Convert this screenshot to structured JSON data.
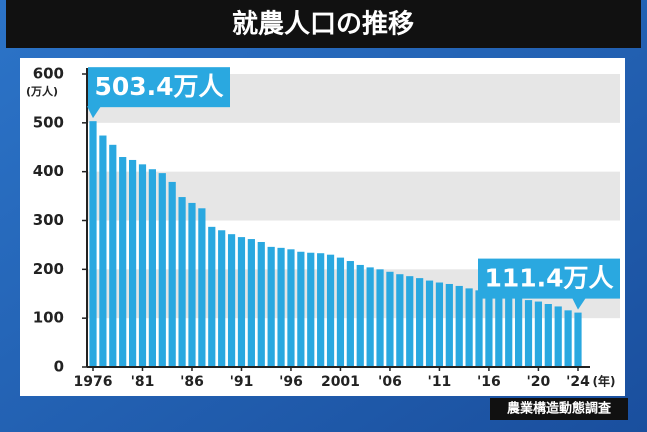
{
  "chart_data": {
    "type": "bar",
    "title": "就農人口の推移",
    "y_unit_label": "(万人)",
    "x_unit_label": "(年)",
    "source": "農業構造動態調査",
    "categories": [
      "1976",
      null,
      null,
      null,
      null,
      "'81",
      null,
      null,
      null,
      null,
      "'86",
      null,
      null,
      null,
      null,
      "'91",
      null,
      null,
      null,
      null,
      "'96",
      null,
      null,
      null,
      null,
      "2001",
      null,
      null,
      null,
      null,
      "'06",
      null,
      null,
      null,
      null,
      "'11",
      null,
      null,
      null,
      null,
      "'16",
      null,
      null,
      null,
      null,
      "'20",
      null,
      null,
      null,
      "'24"
    ],
    "values": [
      503.4,
      474,
      455,
      430,
      424,
      415,
      405,
      397,
      379,
      348,
      336,
      325,
      287,
      280,
      272,
      266,
      262,
      256,
      246,
      244,
      241,
      236,
      234,
      233,
      230,
      224,
      217,
      209,
      204,
      200,
      195,
      190,
      186,
      182,
      177,
      173,
      170,
      166,
      161,
      157,
      152,
      148,
      145,
      141,
      137,
      134,
      129,
      124,
      116,
      111.4
    ],
    "value_labels": [
      "503.4万人",
      null,
      null,
      null,
      null,
      null,
      null,
      null,
      null,
      null,
      null,
      null,
      null,
      null,
      null,
      null,
      null,
      null,
      null,
      null,
      null,
      null,
      null,
      null,
      null,
      null,
      null,
      null,
      null,
      null,
      null,
      null,
      null,
      null,
      null,
      null,
      null,
      null,
      null,
      null,
      null,
      null,
      null,
      null,
      null,
      null,
      null,
      null,
      null,
      "111.4万人"
    ],
    "color": "#2aa8e0",
    "ylim": [
      0,
      600
    ],
    "yticks": [
      0,
      100,
      200,
      300,
      400,
      500,
      600
    ],
    "grid": "bands"
  }
}
